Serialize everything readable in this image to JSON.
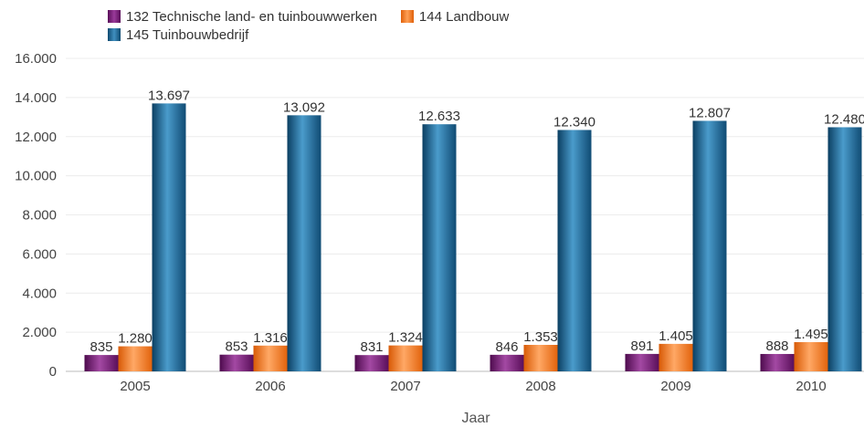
{
  "chart_data": {
    "type": "bar",
    "xlabel": "Jaar",
    "ylabel": "",
    "categories": [
      "2005",
      "2006",
      "2007",
      "2008",
      "2009",
      "2010"
    ],
    "series": [
      {
        "name": "132 Technische land- en tuinbouwwerken",
        "color": "#7a1e7a",
        "values": [
          835,
          853,
          831,
          846,
          891,
          888
        ],
        "labels": [
          "835",
          "853",
          "831",
          "846",
          "891",
          "888"
        ]
      },
      {
        "name": "144 Landbouw",
        "color": "#f57b1f",
        "values": [
          1280,
          1316,
          1324,
          1353,
          1405,
          1495
        ],
        "labels": [
          "1.280",
          "1.316",
          "1.324",
          "1.353",
          "1.405",
          "1.495"
        ]
      },
      {
        "name": "145 Tuinbouwbedrijf",
        "color": "#1b6390",
        "values": [
          13697,
          13092,
          12633,
          12340,
          12807,
          12480
        ],
        "labels": [
          "13.697",
          "13.092",
          "12.633",
          "12.340",
          "12.807",
          "12.480"
        ]
      }
    ],
    "ylim": [
      0,
      16000
    ],
    "yticks": [
      0,
      2000,
      4000,
      6000,
      8000,
      10000,
      12000,
      14000,
      16000
    ],
    "ytick_labels": [
      "0",
      "2.000",
      "4.000",
      "6.000",
      "8.000",
      "10.000",
      "12.000",
      "14.000",
      "16.000"
    ],
    "grid": true,
    "legend": "top-left"
  }
}
